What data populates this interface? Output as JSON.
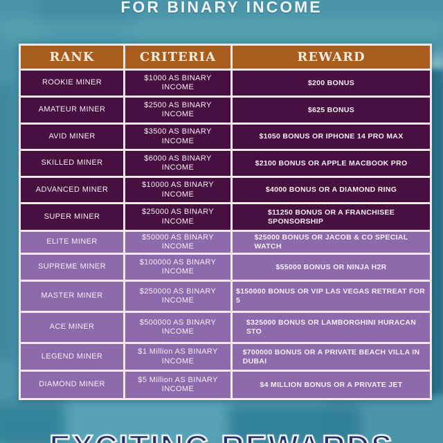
{
  "title": "FOR BINARY INCOME",
  "bottom_banner": "EXCITING REWARDS",
  "table": {
    "headers": [
      "RANK",
      "CRITERIA",
      "REWARD"
    ],
    "rows": [
      {
        "rank": "ROOKIE MINER",
        "criteria": "$1000 AS BINARY INCOME",
        "reward": "$200 BONUS",
        "tier": "dark"
      },
      {
        "rank": "AMATEUR MINER",
        "criteria": "$2500 AS BINARY INCOME",
        "reward": "$625 BONUS",
        "tier": "dark"
      },
      {
        "rank": "AVID MINER",
        "criteria": "$3500 AS BINARY INCOME",
        "reward": "$1050 BONUS OR IPHONE 14 PRO MAX",
        "tier": "dark"
      },
      {
        "rank": "SKILLED MINER",
        "criteria": "$6000 AS BINARY INCOME",
        "reward": "$2100 BONUS OR APPLE MACBOOK PRO",
        "tier": "dark"
      },
      {
        "rank": "ADVANCED MINER",
        "criteria": "$10000 AS BINARY INCOME",
        "reward": "$4000 BONUS OR A DIAMOND RING",
        "tier": "dark"
      },
      {
        "rank": "SUPER MINER",
        "criteria": "$25000 AS BINARY INCOME",
        "reward": "$11250 BONUS OR A FRANCHISEE\nSPONSORSHIP",
        "tier": "dark"
      },
      {
        "rank": "ELITE MINER",
        "criteria": "$50000 AS BINARY INCOME",
        "reward": "$25000 BONUS OR JACOB & CO SPECIAL\nWATCH",
        "tier": "light"
      },
      {
        "rank": "SUPREME MINER",
        "criteria": "$100000 AS BINARY INCOME",
        "reward": "$55000 BONUS OR NINJA H2R",
        "tier": "light"
      },
      {
        "rank": "MASTER MINER",
        "criteria": "$250000 AS BINARY INCOME",
        "reward": "$150000 BONUS OR VIP LAS VEGAS RETREAT FOR 5",
        "tier": "light"
      },
      {
        "rank": "ACE MINER",
        "criteria": "$500000 AS BINARY INCOME",
        "reward": "$325000 BONUS OR LAMBORGHINI HURACAN\nSTO",
        "tier": "light"
      },
      {
        "rank": "LEGEND MINER",
        "criteria": "$1 Million AS BINARY INCOME",
        "reward": "$700000 BONUS OR A PRIVATE BEACH VILLA IN\nDUBAI",
        "tier": "light"
      },
      {
        "rank": "DIAMOND MINER",
        "criteria": "$5 Million AS BINARY INCOME",
        "reward": "$4 MILLION BONUS OR A PRIVATE JET",
        "tier": "light"
      }
    ]
  },
  "colors": {
    "background": "#4a95aa",
    "header_bg": "#a85c1e",
    "dark_row": "#481040",
    "light_row": "#8c6aab",
    "border": "#f3e9ea",
    "banner_text": "#24316b"
  }
}
